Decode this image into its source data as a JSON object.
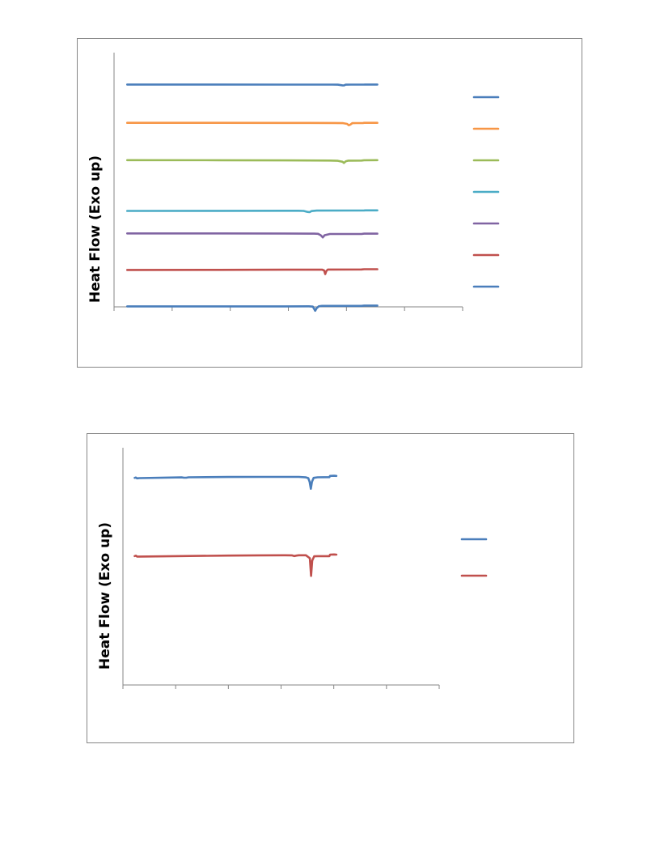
{
  "chart_data": [
    {
      "type": "line",
      "title": "",
      "xlabel": "",
      "ylabel": "Heat Flow (Exo up)",
      "legend_position": "right",
      "grid": false,
      "series": [
        {
          "color": "#4a7ebb",
          "points": [
            [
              5,
              9
            ],
            [
              40,
              9.5
            ],
            [
              65,
              10
            ],
            [
              83,
              10.2
            ],
            [
              85,
              11
            ],
            [
              86.8,
              16
            ],
            [
              87.3,
              16.5
            ],
            [
              88,
              11
            ],
            [
              90,
              10
            ],
            [
              95,
              10
            ],
            [
              95.2,
              9
            ],
            [
              100,
              9
            ]
          ]
        },
        {
          "color": "#f79646",
          "points": [
            [
              5,
              51
            ],
            [
              40,
              51.5
            ],
            [
              65,
              52
            ],
            [
              84,
              52.5
            ],
            [
              87,
              54
            ],
            [
              88.5,
              60
            ],
            [
              89.2,
              71
            ],
            [
              89.8,
              65
            ],
            [
              90.5,
              54
            ],
            [
              92,
              53
            ],
            [
              94.5,
              53
            ],
            [
              95,
              51
            ],
            [
              100,
              51
            ]
          ]
        },
        {
          "color": "#9bbb59",
          "points": [
            [
              5,
              92
            ],
            [
              40,
              93
            ],
            [
              65,
              94
            ],
            [
              82,
              95
            ],
            [
              85,
              97
            ],
            [
              86.8,
              105
            ],
            [
              87.3,
              115
            ],
            [
              88,
              102
            ],
            [
              89,
              96
            ],
            [
              94,
              95
            ],
            [
              95,
              93
            ],
            [
              100,
              92
            ]
          ]
        },
        {
          "color": "#4bacc6",
          "points": [
            [
              5,
              150
            ],
            [
              40,
              149.5
            ],
            [
              65,
              149
            ],
            [
              70,
              148.5
            ],
            [
              72,
              150
            ],
            [
              73.5,
              158
            ],
            [
              74.3,
              160
            ],
            [
              75,
              151
            ],
            [
              77,
              147
            ],
            [
              95,
              146
            ],
            [
              95.5,
              145
            ],
            [
              100,
              145
            ]
          ]
        },
        {
          "color": "#8064a2",
          "points": [
            [
              5,
              175
            ],
            [
              40,
              175.5
            ],
            [
              65,
              176
            ],
            [
              76,
              177
            ],
            [
              77.5,
              179
            ],
            [
              78.5,
              190
            ],
            [
              79.3,
              208
            ],
            [
              80,
              190
            ],
            [
              82,
              180
            ],
            [
              94,
              180
            ],
            [
              95,
              177
            ],
            [
              100,
              177
            ]
          ]
        },
        {
          "color": "#c0504d",
          "points": [
            [
              5,
              216
            ],
            [
              40,
              215
            ],
            [
              65,
              214
            ],
            [
              79,
              213.5
            ],
            [
              79.8,
              220
            ],
            [
              80.2,
              250
            ],
            [
              80.6,
              226
            ],
            [
              81.2,
              213
            ],
            [
              94,
              212
            ],
            [
              95,
              210
            ],
            [
              100,
              210
            ]
          ]
        },
        {
          "color": "#4a7ebb",
          "points": [
            [
              5,
              256
            ],
            [
              40,
              256
            ],
            [
              65,
              256
            ],
            [
              74,
              255.5
            ],
            [
              75.5,
              258
            ],
            [
              76.4,
              292
            ],
            [
              77,
              270
            ],
            [
              77.8,
              255
            ],
            [
              79,
              252
            ],
            [
              94,
              252
            ],
            [
              95,
              249
            ],
            [
              100,
              249
            ]
          ]
        }
      ]
    },
    {
      "type": "line",
      "title": "",
      "xlabel": "",
      "ylabel": "Heat Flow (Exo up)",
      "legend_position": "right",
      "grid": false,
      "series": [
        {
          "color": "#4a7ebb",
          "points": [
            [
              5,
              8
            ],
            [
              5.5,
              5
            ],
            [
              6,
              12
            ],
            [
              7,
              10
            ],
            [
              25,
              4
            ],
            [
              26,
              7
            ],
            [
              27,
              7
            ],
            [
              28,
              3
            ],
            [
              45,
              1
            ],
            [
              60,
              0
            ],
            [
              75,
              0
            ],
            [
              78,
              4
            ],
            [
              79,
              10
            ],
            [
              79.6,
              40
            ],
            [
              80.1,
              98
            ],
            [
              80.6,
              40
            ],
            [
              81.3,
              8
            ],
            [
              83,
              3
            ],
            [
              88,
              2
            ],
            [
              88.3,
              -8
            ],
            [
              90,
              -9
            ],
            [
              91,
              -8
            ]
          ]
        },
        {
          "color": "#c0504d",
          "points": [
            [
              5,
              92
            ],
            [
              5.5,
              89
            ],
            [
              6,
              96
            ],
            [
              7,
              96
            ],
            [
              25,
              92
            ],
            [
              45,
              88
            ],
            [
              58,
              86
            ],
            [
              69,
              85
            ],
            [
              72,
              86
            ],
            [
              73,
              92
            ],
            [
              74,
              88
            ],
            [
              75,
              85
            ],
            [
              78,
              85
            ],
            [
              79.7,
              110
            ],
            [
              80.2,
              255
            ],
            [
              80.7,
              130
            ],
            [
              81.5,
              94
            ],
            [
              83,
              93
            ],
            [
              88,
              93
            ],
            [
              88.3,
              80
            ],
            [
              90,
              79
            ],
            [
              91,
              80
            ]
          ]
        }
      ]
    }
  ]
}
